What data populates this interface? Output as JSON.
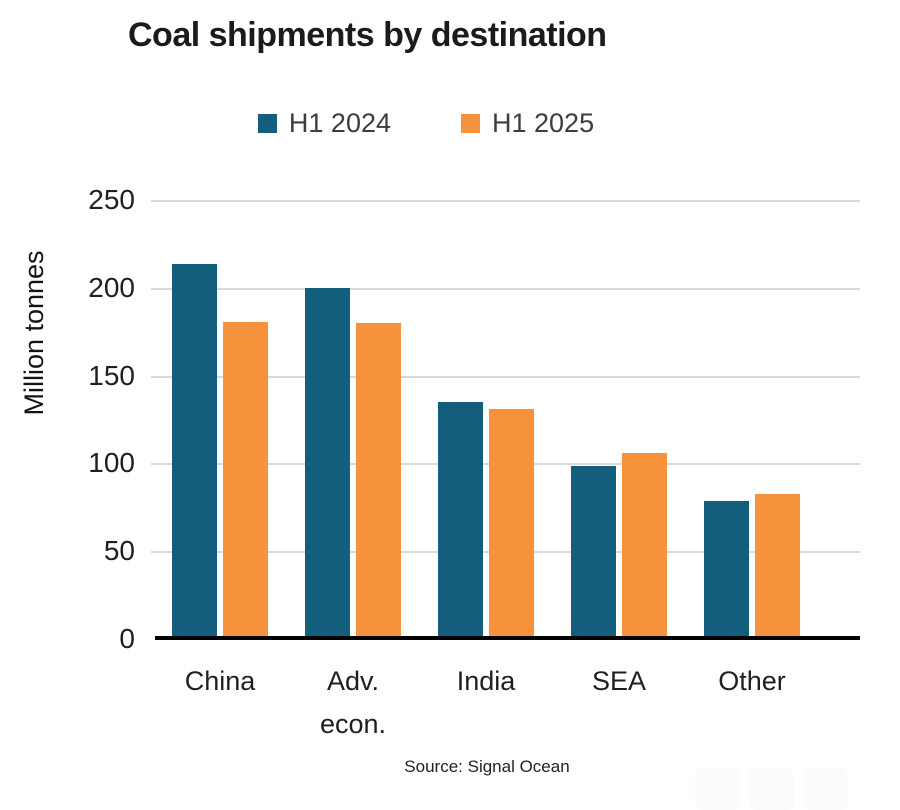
{
  "chart_data": {
    "type": "bar",
    "title": "Coal shipments by destination",
    "xlabel": "",
    "ylabel": "Million tonnes",
    "source": "Source: Signal Ocean",
    "categories": [
      "China",
      "Adv. econ.",
      "India",
      "SEA",
      "Other"
    ],
    "series": [
      {
        "name": "H1 2024",
        "color": "#135E7D",
        "values": [
          212,
          198,
          133,
          97,
          77
        ]
      },
      {
        "name": "H1 2025",
        "color": "#F6923C",
        "values": [
          179,
          178,
          129,
          104,
          81
        ]
      }
    ],
    "ylim": [
      0,
      250
    ],
    "yticks": [
      0,
      50,
      100,
      150,
      200,
      250
    ],
    "grid": true,
    "gridline_color": "#d9d9d9",
    "axis_line_color": "#000000",
    "legend_position": "top-center"
  }
}
